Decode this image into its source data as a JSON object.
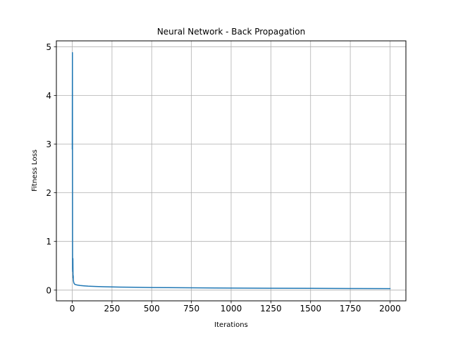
{
  "chart_data": {
    "type": "line",
    "title": "Neural Network - Back Propagation",
    "xlabel": "Iterations",
    "ylabel": "Fitness Loss",
    "xlim": [
      -100,
      2100
    ],
    "ylim": [
      -0.22,
      5.12
    ],
    "xticks": [
      0,
      250,
      500,
      750,
      1000,
      1250,
      1500,
      1750,
      2000
    ],
    "yticks": [
      0,
      1,
      2,
      3,
      4,
      5
    ],
    "grid": true,
    "legend": "none",
    "series": [
      {
        "color": "#1f77b4",
        "x": [
          0,
          1,
          2,
          3,
          4,
          5,
          6,
          7,
          8,
          10,
          13,
          16,
          20,
          25,
          30,
          40,
          50,
          75,
          100,
          150,
          200,
          250,
          300,
          400,
          500,
          600,
          750,
          900,
          1000,
          1250,
          1500,
          1750,
          2000
        ],
        "y": [
          2.9,
          4.88,
          0.45,
          0.38,
          0.65,
          0.25,
          0.3,
          0.2,
          0.18,
          0.15,
          0.13,
          0.12,
          0.115,
          0.11,
          0.105,
          0.1,
          0.095,
          0.088,
          0.082,
          0.075,
          0.07,
          0.066,
          0.063,
          0.058,
          0.054,
          0.051,
          0.048,
          0.045,
          0.043,
          0.039,
          0.036,
          0.034,
          0.032
        ]
      }
    ]
  }
}
